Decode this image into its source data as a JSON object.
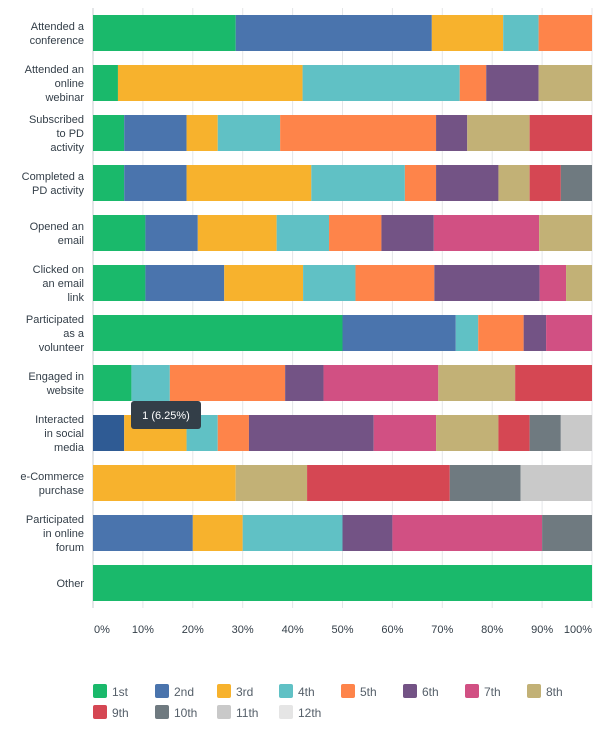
{
  "chart_data": {
    "type": "bar",
    "orientation": "horizontal",
    "stacked": true,
    "title": "",
    "xlabel": "",
    "ylabel": "",
    "xlim": [
      0,
      100
    ],
    "x_ticks": [
      "0%",
      "10%",
      "20%",
      "30%",
      "40%",
      "50%",
      "60%",
      "70%",
      "80%",
      "90%",
      "100%"
    ],
    "grid": true,
    "legend_position": "bottom",
    "categories": [
      "Attended a conference",
      "Attended an online webinar",
      "Subscribed to PD activity",
      "Completed a PD activity",
      "Opened an email",
      "Clicked on an email link",
      "Participated as a volunteer",
      "Engaged in website",
      "Interacted in social media",
      "e-Commerce purchase",
      "Participated in online forum",
      "Other"
    ],
    "series": [
      {
        "name": "1st",
        "color": "#1ab96b",
        "values": [
          28.6,
          5.0,
          6.25,
          6.25,
          10.5,
          10.5,
          50.0,
          7.7,
          0,
          0,
          0,
          100
        ]
      },
      {
        "name": "2nd",
        "color": "#4a74ad",
        "values": [
          39.3,
          0,
          12.5,
          12.5,
          10.5,
          15.8,
          22.7,
          0,
          6.25,
          0,
          20.0,
          0
        ]
      },
      {
        "name": "3rd",
        "color": "#f7b22d",
        "values": [
          14.3,
          37.0,
          6.25,
          25.0,
          15.8,
          15.8,
          0,
          0,
          12.5,
          28.6,
          10.0,
          0
        ]
      },
      {
        "name": "4th",
        "color": "#60c1c5",
        "values": [
          7.1,
          31.5,
          12.5,
          18.75,
          10.5,
          10.5,
          4.5,
          7.7,
          6.25,
          0,
          20.0,
          0
        ]
      },
      {
        "name": "5th",
        "color": "#fe844a",
        "values": [
          10.7,
          5.3,
          31.25,
          6.25,
          10.5,
          15.8,
          9.1,
          23.1,
          6.25,
          0,
          0,
          0
        ]
      },
      {
        "name": "6th",
        "color": "#735385",
        "values": [
          0,
          10.5,
          6.25,
          12.5,
          10.5,
          21.1,
          4.5,
          7.7,
          25.0,
          0,
          10.0,
          0
        ]
      },
      {
        "name": "7th",
        "color": "#d15083",
        "values": [
          0,
          0,
          0,
          0,
          21.1,
          5.3,
          9.2,
          23.0,
          12.5,
          0,
          30.0,
          0
        ]
      },
      {
        "name": "8th",
        "color": "#c2b176",
        "values": [
          0,
          10.7,
          12.5,
          6.25,
          10.6,
          5.2,
          0,
          15.4,
          12.5,
          14.3,
          0,
          0
        ]
      },
      {
        "name": "9th",
        "color": "#d54753",
        "values": [
          0,
          0,
          12.5,
          6.25,
          0,
          0,
          0,
          15.4,
          6.25,
          28.6,
          0,
          0
        ]
      },
      {
        "name": "10th",
        "color": "#6f7a80",
        "values": [
          0,
          0,
          0,
          6.25,
          0,
          0,
          0,
          0,
          6.25,
          14.2,
          10.0,
          0
        ]
      },
      {
        "name": "11th",
        "color": "#c9c9c9",
        "values": [
          0,
          0,
          0,
          0,
          0,
          0,
          0,
          0,
          6.25,
          14.3,
          0,
          0
        ]
      },
      {
        "name": "12th",
        "color": "#e5e5e5",
        "values": [
          0,
          0,
          0,
          0,
          0,
          0,
          0,
          0,
          0,
          0,
          0,
          0
        ]
      }
    ],
    "highlight": {
      "category_index": 8,
      "series_index": 1,
      "color": "#2f5b94"
    },
    "tooltip": {
      "text": "1 (6.25%)"
    }
  }
}
